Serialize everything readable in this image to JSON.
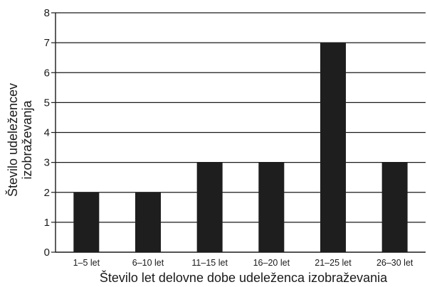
{
  "chart_data": {
    "type": "bar",
    "title": "",
    "xlabel": "Število let delovne dobe udeleženca izobraževania",
    "ylabel_lines": [
      "Število udeležencev",
      "izobraževanja"
    ],
    "categories": [
      "1–5 let",
      "6–10 let",
      "11–15 let",
      "16–20 let",
      "21–25 let",
      "26–30 let"
    ],
    "values": [
      2,
      2,
      3,
      3,
      7,
      3
    ],
    "ylim": [
      0,
      8
    ],
    "yticks": [
      0,
      1,
      2,
      3,
      4,
      5,
      6,
      7,
      8
    ],
    "grid": true,
    "legend": "none",
    "colors": {
      "bar": "#1e1e1e",
      "grid": "#1a1a1a",
      "axis": "#1a1a1a"
    }
  }
}
